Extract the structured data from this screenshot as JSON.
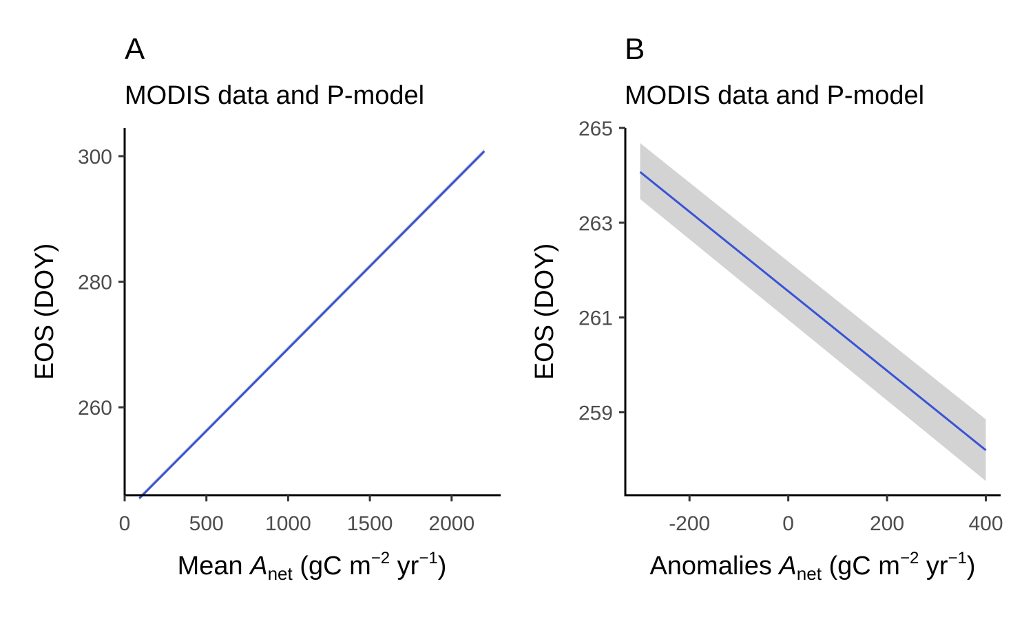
{
  "colors": {
    "fit_line": "#3853d6",
    "ci_band": "#d3d3d3",
    "axis": "#000000",
    "tick_text": "#4d4d4d"
  },
  "chart_data": [
    {
      "type": "line",
      "panel": "A",
      "title": "MODIS data and P-model",
      "xlabel": {
        "prefix": "Mean ",
        "var": "A",
        "sub": "net",
        "paren_open": " (gC m",
        "sup1": "−2",
        "mid": " yr",
        "sup2": "−1",
        "close": ")"
      },
      "ylabel": "EOS (DOY)",
      "xlim": [
        0,
        2300
      ],
      "ylim": [
        246,
        304.5
      ],
      "x_ticks": [
        0,
        500,
        1000,
        1500,
        2000
      ],
      "x_tick_labels": [
        "0",
        "500",
        "1000",
        "1500",
        "2000"
      ],
      "y_ticks": [
        260,
        280,
        300
      ],
      "y_tick_labels": [
        "260",
        "280",
        "300"
      ],
      "grid": false,
      "series": [
        {
          "x": [
            90,
            2200
          ],
          "y": [
            245.5,
            300.8
          ],
          "lower": [
            245.2,
            300.4
          ],
          "upper": [
            245.9,
            301.2
          ]
        }
      ]
    },
    {
      "type": "line",
      "panel": "B",
      "title": "MODIS data and P-model",
      "xlabel": {
        "prefix": "Anomalies ",
        "var": "A",
        "sub": "net",
        "paren_open": " (gC m",
        "sup1": "−2",
        "mid": " yr",
        "sup2": "−1",
        "close": ")"
      },
      "ylabel": "EOS (DOY)",
      "xlim": [
        -330,
        430
      ],
      "ylim": [
        257.25,
        265
      ],
      "x_ticks": [
        -200,
        0,
        200,
        400
      ],
      "x_tick_labels": [
        "-200",
        "0",
        "200",
        "400"
      ],
      "y_ticks": [
        259,
        261,
        263,
        265
      ],
      "y_tick_labels": [
        "259",
        "261",
        "263",
        "265"
      ],
      "grid": false,
      "series": [
        {
          "x": [
            -300,
            400
          ],
          "y": [
            264.07,
            258.2
          ],
          "lower": [
            263.5,
            257.55
          ],
          "upper": [
            264.68,
            258.85
          ]
        }
      ]
    }
  ]
}
